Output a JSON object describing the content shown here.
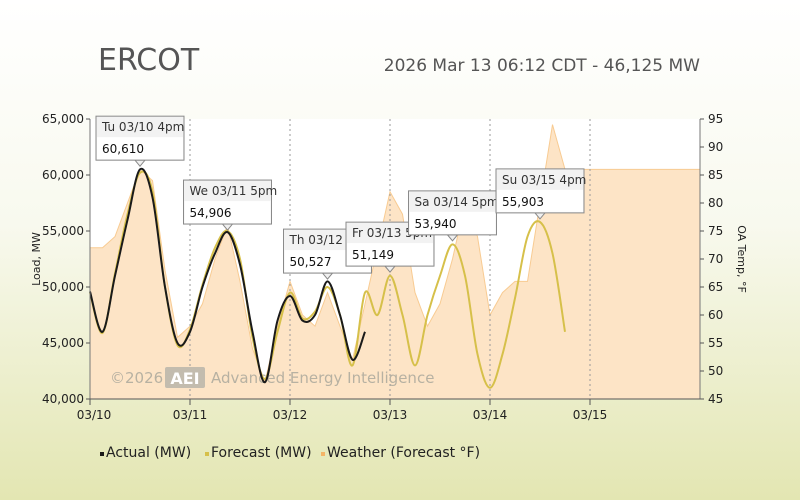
{
  "header": {
    "title": "ERCOT",
    "status": "2026 Mar 13 06:12 CDT - 46,125 MW"
  },
  "watermark": {
    "copyright": "©2026",
    "logo": "AEI",
    "company": "Advanced Energy Intelligence"
  },
  "colors": {
    "actual": "#1a1a1a",
    "forecast": "#d6c04a",
    "weather_fill": "#fde4c6",
    "weather_line": "#f8cb92",
    "highlight_callout": "#cc0000"
  },
  "chart_data": {
    "type": "line",
    "x_start": "03/10",
    "x_step_hours": 3,
    "x_ticks": [
      "03/10",
      "03/11",
      "03/12",
      "03/13",
      "03/14",
      "03/15"
    ],
    "y_left": {
      "label": "Load, MW",
      "range": [
        40000,
        65000
      ],
      "ticks": [
        "40,000",
        "45,000",
        "50,000",
        "55,000",
        "60,000",
        "65,000"
      ]
    },
    "y_right": {
      "label": "OA Temp, °F",
      "range": [
        45,
        95
      ],
      "ticks": [
        "45",
        "50",
        "55",
        "60",
        "65",
        "70",
        "75",
        "80",
        "85",
        "90",
        "95"
      ]
    },
    "legend_position": "bottom-left",
    "grid": "vertical dashed at each day",
    "series": [
      {
        "name": "Actual (MW)",
        "values": [
          49600,
          46000,
          51000,
          56000,
          60500,
          58000,
          50000,
          45000,
          46000,
          50000,
          53000,
          54900,
          52000,
          46000,
          41500,
          47000,
          49200,
          47000,
          47500,
          50500,
          47500,
          43500,
          46000
        ]
      },
      {
        "name": "Forecast (MW)",
        "values": [
          49500,
          45900,
          51200,
          56500,
          60200,
          58500,
          50000,
          44800,
          46200,
          50200,
          53500,
          55000,
          52500,
          45500,
          41800,
          46000,
          49500,
          47200,
          47800,
          50000,
          47500,
          43000,
          49500,
          47500,
          51000,
          47500,
          43000,
          47500,
          51000,
          53800,
          51000,
          44000,
          41000,
          44000,
          49000,
          54500,
          55800,
          53000,
          46000
        ]
      },
      {
        "name": "Weather (Forecast °F)",
        "values": [
          72,
          72,
          74,
          80,
          86,
          84,
          68,
          56,
          58,
          62,
          70,
          76,
          66,
          54,
          48,
          58,
          66,
          60,
          58,
          64,
          58,
          52,
          62,
          72,
          82,
          78,
          64,
          58,
          62,
          70,
          80,
          74,
          60,
          64,
          66,
          66,
          80,
          94,
          86
        ]
      }
    ],
    "annotations": [
      {
        "label": "Tu 03/10 4pm",
        "value": "60,610",
        "at_index": 4,
        "highlight": false
      },
      {
        "label": "We 03/11 5pm",
        "value": "54,906",
        "at_index": 11,
        "highlight": false
      },
      {
        "label": "Th 03/12 8pm",
        "value": "50,527",
        "at_index": 19,
        "highlight": false
      },
      {
        "label": "Fr 03/13 5pm",
        "value": "51,149",
        "at_index": 24,
        "highlight": true
      },
      {
        "label": "Sa 03/14 5pm",
        "value": "53,940",
        "at_index": 29,
        "highlight": false
      },
      {
        "label": "Su 03/15 4pm",
        "value": "55,903",
        "at_index": 36,
        "highlight": false
      }
    ]
  }
}
